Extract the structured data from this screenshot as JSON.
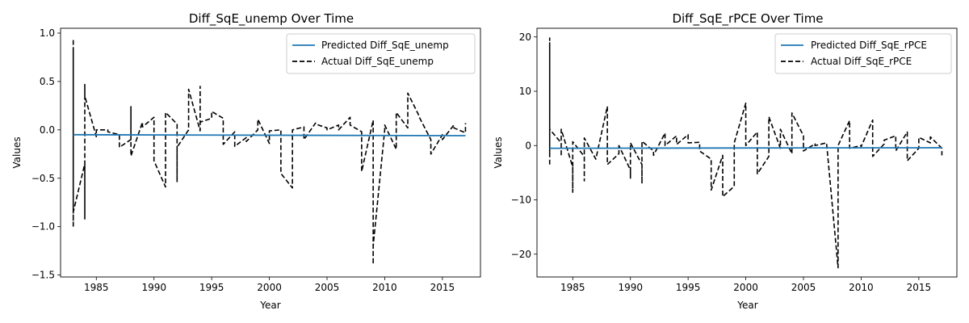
{
  "chart_data": [
    {
      "type": "line",
      "title": "Diff_SqE_unemp Over Time",
      "xlabel": "Year",
      "ylabel": "Values",
      "xlim": [
        1981.9,
        2018.3
      ],
      "ylim": [
        -1.52,
        1.05
      ],
      "xticks": [
        1985,
        1990,
        1995,
        2000,
        2005,
        2010,
        2015
      ],
      "yticks": [
        -1.5,
        -1.0,
        -0.5,
        0.0,
        0.5,
        1.0
      ],
      "ytick_labels": [
        "−1.5",
        "−1.0",
        "−0.5",
        "0.0",
        "0.5",
        "1.0"
      ],
      "grid": false,
      "legend_position": "top-right",
      "series": [
        {
          "name": "Predicted Diff_SqE_unemp",
          "color": "#1f77b4",
          "style": "solid",
          "x": [
            1983.0,
            2017.0
          ],
          "y": [
            -0.05,
            -0.06
          ]
        },
        {
          "name": "Actual Diff_SqE_unemp",
          "color": "#000000",
          "style": "dashed",
          "x": [
            1983.0,
            1983.0,
            1983.0,
            1983.0,
            1983.0,
            1983.0,
            1983.0,
            1983.0,
            1983.0,
            1983.0,
            1984.0,
            1984.0,
            1984.0,
            1984.0,
            1985.0,
            1985.0,
            1986.0,
            1986.0,
            1987.0,
            1987.0,
            1988.0,
            1988.0,
            1988.0,
            1989.0,
            1989.0,
            1990.0,
            1990.0,
            1991.0,
            1991.0,
            1992.0,
            1992.0,
            1992.0,
            1993.0,
            1993.0,
            1994.0,
            1994.0,
            1994.0,
            1995.0,
            1995.0,
            1996.0,
            1996.0,
            1997.0,
            1997.0,
            1998.0,
            1998.0,
            1999.0,
            1999.0,
            2000.0,
            2000.0,
            2001.0,
            2001.0,
            2002.0,
            2002.0,
            2003.0,
            2003.0,
            2004.0,
            2004.0,
            2005.0,
            2005.0,
            2006.0,
            2006.0,
            2007.0,
            2007.0,
            2008.0,
            2008.0,
            2009.0,
            2009.0,
            2009.0,
            2010.0,
            2010.0,
            2011.0,
            2011.0,
            2012.0,
            2012.0,
            2013.0,
            2013.0,
            2014.0,
            2014.0,
            2015.0,
            2015.0,
            2016.0,
            2016.0,
            2017.0,
            2017.0
          ],
          "y": [
            -1.0,
            0.94,
            -0.9,
            0.85,
            -0.8,
            0.7,
            -0.6,
            0.5,
            -0.95,
            -0.85,
            -0.35,
            -0.92,
            0.47,
            0.35,
            -0.07,
            0.0,
            0.0,
            -0.02,
            -0.05,
            -0.18,
            -0.1,
            0.24,
            -0.27,
            0.08,
            0.03,
            0.13,
            -0.32,
            -0.59,
            0.18,
            0.06,
            -0.54,
            -0.18,
            0.0,
            0.42,
            -0.01,
            0.45,
            0.08,
            0.12,
            0.19,
            0.12,
            -0.15,
            -0.02,
            -0.17,
            -0.08,
            -0.12,
            0.0,
            0.11,
            -0.14,
            -0.01,
            0.0,
            -0.45,
            -0.6,
            0.0,
            0.03,
            -0.1,
            0.07,
            0.06,
            0.02,
            0.0,
            0.05,
            0.0,
            0.13,
            0.05,
            -0.02,
            -0.43,
            0.1,
            -1.39,
            -1.2,
            0.0,
            0.05,
            -0.2,
            0.18,
            0.02,
            0.38,
            0.14,
            0.13,
            -0.1,
            -0.25,
            -0.05,
            -0.1,
            0.05,
            0.02,
            -0.03,
            0.07
          ]
        }
      ]
    },
    {
      "type": "line",
      "title": "Diff_SqE_rPCE Over Time",
      "xlabel": "Year",
      "ylabel": "Values",
      "xlim": [
        1981.9,
        2018.3
      ],
      "ylim": [
        -24.2,
        21.6
      ],
      "xticks": [
        1985,
        1990,
        1995,
        2000,
        2005,
        2010,
        2015
      ],
      "yticks": [
        -20,
        -10,
        0,
        10,
        20
      ],
      "ytick_labels": [
        "−20",
        "−10",
        "0",
        "10",
        "20"
      ],
      "grid": false,
      "legend_position": "top-right",
      "series": [
        {
          "name": "Predicted Diff_SqE_rPCE",
          "color": "#1f77b4",
          "style": "solid",
          "x": [
            1983.0,
            2017.0
          ],
          "y": [
            -0.5,
            -0.4
          ]
        },
        {
          "name": "Actual Diff_SqE_rPCE",
          "color": "#000000",
          "style": "dashed",
          "x": [
            1983.0,
            1983.0,
            1983.0,
            1983.0,
            1983.0,
            1983.0,
            1983.0,
            1983.0,
            1984.0,
            1984.0,
            1984.0,
            1985.0,
            1985.0,
            1985.0,
            1986.0,
            1986.0,
            1986.0,
            1987.0,
            1988.0,
            1988.0,
            1989.0,
            1989.0,
            1990.0,
            1990.0,
            1990.0,
            1991.0,
            1991.0,
            1991.0,
            1992.0,
            1992.0,
            1993.0,
            1993.0,
            1994.0,
            1994.0,
            1995.0,
            1995.0,
            1996.0,
            1996.0,
            1997.0,
            1997.0,
            1998.0,
            1998.0,
            1999.0,
            1999.0,
            2000.0,
            2000.0,
            2001.0,
            2001.0,
            2002.0,
            2002.0,
            2003.0,
            2003.0,
            2004.0,
            2004.0,
            2005.0,
            2005.0,
            2006.0,
            2006.0,
            2007.0,
            2008.0,
            2008.0,
            2009.0,
            2009.0,
            2010.0,
            2010.0,
            2011.0,
            2011.0,
            2012.0,
            2012.0,
            2013.0,
            2013.0,
            2014.0,
            2014.0,
            2015.0,
            2015.0,
            2016.0,
            2016.0,
            2017.0,
            2017.0
          ],
          "y": [
            -3.5,
            19.8,
            -2.0,
            18.5,
            -1.0,
            15.0,
            4.5,
            3.0,
            0.5,
            -2.0,
            3.0,
            -4.0,
            -8.6,
            0.7,
            -2.0,
            -6.5,
            1.4,
            -2.5,
            7.2,
            -3.5,
            -1.5,
            0.0,
            -4.5,
            -6.0,
            0.5,
            -3.5,
            -7.0,
            0.8,
            -1.0,
            -1.8,
            2.3,
            0.0,
            1.8,
            0.2,
            2.0,
            0.5,
            0.6,
            -1.0,
            -2.5,
            -8.2,
            -1.8,
            -9.4,
            -7.5,
            0.5,
            7.8,
            0.0,
            2.5,
            -5.2,
            -2.0,
            5.3,
            -0.5,
            3.0,
            -1.5,
            6.0,
            1.8,
            -1.0,
            0.3,
            0.0,
            0.5,
            -22.5,
            0.0,
            4.6,
            -0.5,
            0.0,
            -0.2,
            4.7,
            -2.0,
            0.3,
            1.0,
            1.8,
            -1.0,
            2.5,
            -2.8,
            -0.5,
            1.5,
            0.5,
            1.6,
            -0.5,
            -1.8
          ]
        }
      ]
    }
  ]
}
